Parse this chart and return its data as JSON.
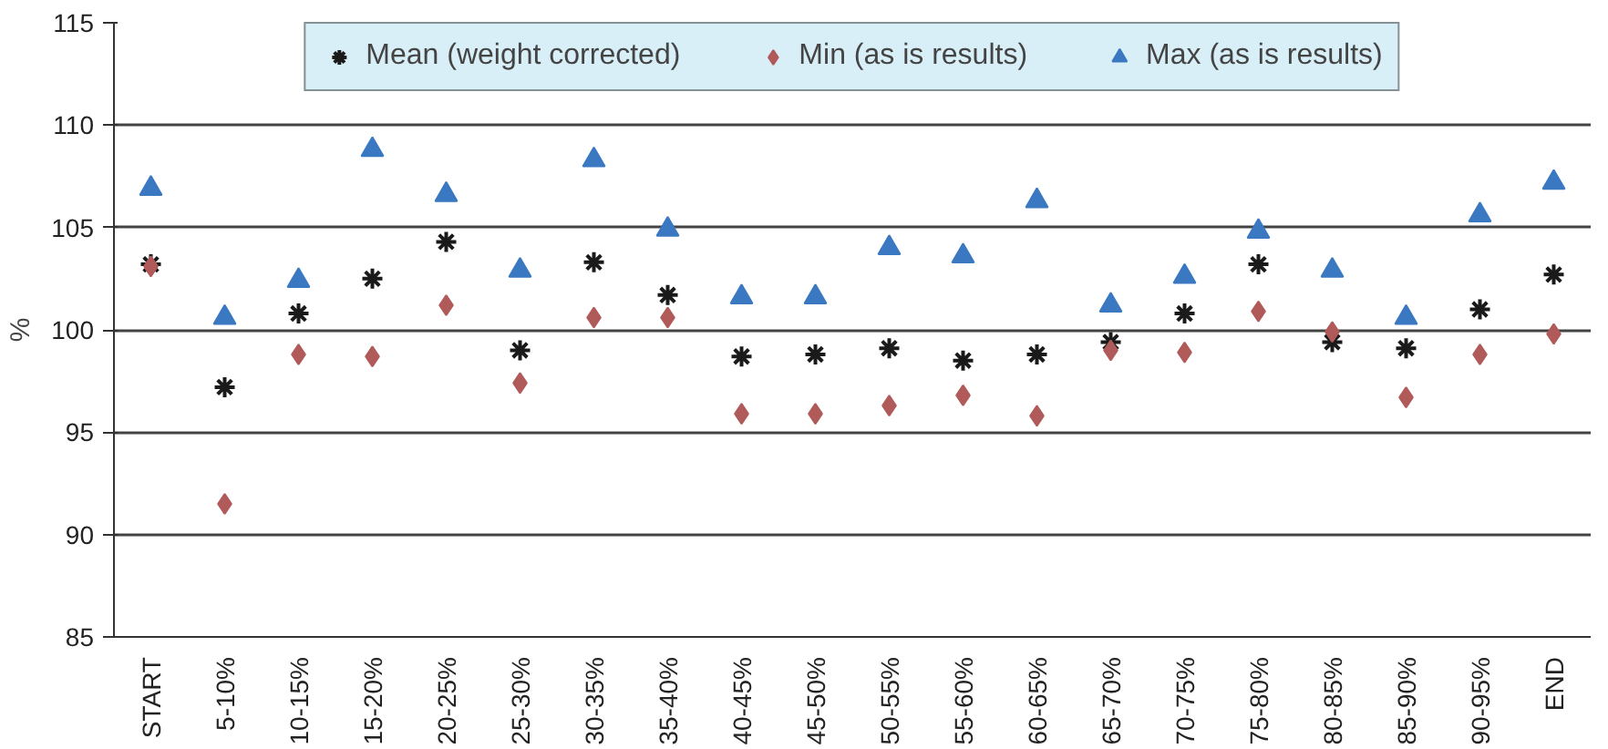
{
  "chart_data": {
    "type": "scatter",
    "ylabel": "%",
    "categories": [
      "START",
      "5-10%",
      "10-15%",
      "15-20%",
      "20-25%",
      "25-30%",
      "30-35%",
      "35-40%",
      "40-45%",
      "45-50%",
      "50-55%",
      "55-60%",
      "60-65%",
      "65-70%",
      "70-75%",
      "75-80%",
      "80-85%",
      "85-90%",
      "90-95%",
      "END"
    ],
    "series": [
      {
        "name": "Mean (weight corrected)",
        "color": "#1a1a1a",
        "marker": "cross",
        "values": [
          103.2,
          97.2,
          100.8,
          102.5,
          104.3,
          99.0,
          103.3,
          101.7,
          98.7,
          98.8,
          99.1,
          98.5,
          98.8,
          99.4,
          100.8,
          103.2,
          99.4,
          99.1,
          101.0,
          102.7
        ]
      },
      {
        "name": "Min (as is results)",
        "color": "#b05a5a",
        "marker": "diamond",
        "values": [
          103.1,
          91.5,
          98.8,
          98.7,
          101.2,
          97.4,
          100.6,
          100.6,
          95.9,
          95.9,
          96.3,
          96.8,
          95.8,
          99.0,
          98.9,
          100.9,
          99.9,
          96.7,
          98.8,
          99.8
        ]
      },
      {
        "name": "Max (as is results)",
        "color": "#3a78c2",
        "marker": "triangle",
        "values": [
          106.9,
          100.6,
          102.4,
          108.8,
          106.6,
          102.9,
          108.3,
          104.9,
          101.6,
          101.6,
          104.0,
          103.6,
          106.3,
          101.2,
          102.6,
          104.8,
          102.9,
          100.6,
          105.6,
          107.2
        ]
      }
    ],
    "ylim": [
      85,
      115
    ],
    "yticks": [
      85,
      90,
      95,
      100,
      105,
      110,
      115
    ],
    "grid": "y",
    "legend": "top"
  }
}
